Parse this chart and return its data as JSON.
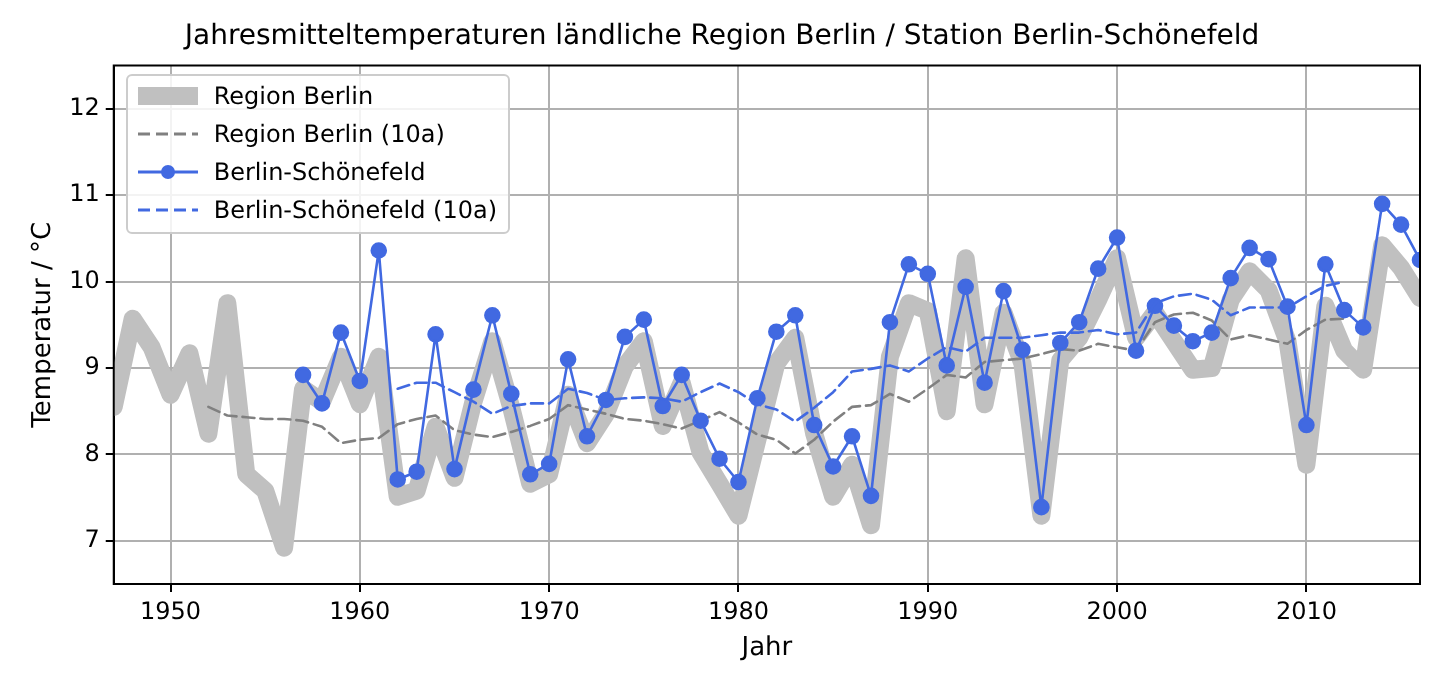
{
  "chart_data": {
    "type": "line",
    "title": "Jahresmitteltemperaturen ländliche Region Berlin / Station Berlin-Schönefeld",
    "xlabel": "Jahr",
    "ylabel": "Temperatur / °C",
    "xlim": [
      1947,
      2016
    ],
    "ylim": [
      6.5,
      12.5
    ],
    "xticks": [
      1950,
      1960,
      1970,
      1980,
      1990,
      2000,
      2010
    ],
    "yticks": [
      7,
      8,
      9,
      10,
      11,
      12
    ],
    "grid": true,
    "legend": "top left",
    "series": [
      {
        "name": "Region Berlin",
        "color": "#c0c0c0",
        "line_style": "solid",
        "marker": "none",
        "x": [
          1947,
          1948,
          1949,
          1950,
          1951,
          1952,
          1953,
          1954,
          1955,
          1956,
          1957,
          1958,
          1959,
          1960,
          1961,
          1962,
          1963,
          1964,
          1965,
          1966,
          1967,
          1968,
          1969,
          1970,
          1971,
          1972,
          1973,
          1974,
          1975,
          1976,
          1977,
          1978,
          1979,
          1980,
          1981,
          1982,
          1983,
          1984,
          1985,
          1986,
          1987,
          1988,
          1989,
          1990,
          1991,
          1992,
          1993,
          1994,
          1995,
          1996,
          1997,
          1998,
          1999,
          2000,
          2001,
          2002,
          2003,
          2004,
          2005,
          2006,
          2007,
          2008,
          2009,
          2010,
          2011,
          2012,
          2013,
          2014,
          2015,
          2016
        ],
        "values": [
          8.55,
          9.57,
          9.24,
          8.69,
          9.17,
          8.24,
          9.75,
          7.77,
          7.58,
          6.92,
          8.76,
          8.61,
          9.13,
          8.58,
          9.13,
          7.51,
          7.58,
          8.32,
          7.73,
          8.61,
          9.31,
          8.54,
          7.66,
          7.77,
          8.69,
          8.13,
          8.47,
          9.02,
          9.31,
          8.33,
          8.83,
          8.02,
          7.66,
          7.29,
          8.17,
          9.05,
          9.35,
          8.24,
          7.51,
          7.88,
          7.18,
          9.13,
          9.75,
          9.66,
          8.5,
          10.27,
          8.58,
          9.64,
          9.05,
          7.29,
          9.09,
          9.35,
          9.79,
          10.27,
          9.35,
          9.64,
          9.31,
          8.98,
          9.0,
          9.79,
          10.12,
          9.9,
          9.31,
          7.88,
          9.72,
          9.2,
          8.98,
          10.42,
          10.16,
          9.81
        ]
      },
      {
        "name": "Region Berlin (10a)",
        "color": "#808080",
        "line_style": "dashed",
        "marker": "none",
        "x": [
          1952,
          1953,
          1954,
          1955,
          1956,
          1957,
          1958,
          1959,
          1960,
          1961,
          1962,
          1963,
          1964,
          1965,
          1966,
          1967,
          1968,
          1969,
          1970,
          1971,
          1972,
          1973,
          1974,
          1975,
          1976,
          1977,
          1978,
          1979,
          1980,
          1981,
          1982,
          1983,
          1984,
          1985,
          1986,
          1987,
          1988,
          1989,
          1990,
          1991,
          1992,
          1993,
          1994,
          1995,
          1996,
          1997,
          1998,
          1999,
          2000,
          2001,
          2002,
          2003,
          2004,
          2005,
          2006,
          2007,
          2008,
          2009,
          2010,
          2011,
          2012
        ],
        "values": [
          8.55,
          8.45,
          8.43,
          8.41,
          8.41,
          8.39,
          8.32,
          8.13,
          8.17,
          8.19,
          8.35,
          8.41,
          8.45,
          8.28,
          8.23,
          8.2,
          8.26,
          8.33,
          8.41,
          8.57,
          8.52,
          8.47,
          8.41,
          8.39,
          8.35,
          8.3,
          8.39,
          8.49,
          8.37,
          8.23,
          8.17,
          8.01,
          8.17,
          8.38,
          8.55,
          8.57,
          8.7,
          8.61,
          8.76,
          8.92,
          8.89,
          9.07,
          9.09,
          9.11,
          9.16,
          9.22,
          9.2,
          9.28,
          9.24,
          9.2,
          9.53,
          9.62,
          9.64,
          9.55,
          9.33,
          9.38,
          9.33,
          9.28,
          9.44,
          9.56,
          9.57
        ]
      },
      {
        "name": "Berlin-Schönefeld",
        "color": "#4169e1",
        "line_style": "solid",
        "marker": "circle",
        "x": [
          1957,
          1958,
          1959,
          1960,
          1961,
          1962,
          1963,
          1964,
          1965,
          1966,
          1967,
          1968,
          1969,
          1970,
          1971,
          1972,
          1973,
          1974,
          1975,
          1976,
          1977,
          1978,
          1979,
          1980,
          1981,
          1982,
          1983,
          1984,
          1985,
          1986,
          1987,
          1988,
          1989,
          1990,
          1991,
          1992,
          1993,
          1994,
          1995,
          1996,
          1997,
          1998,
          1999,
          2000,
          2001,
          2002,
          2003,
          2004,
          2005,
          2006,
          2007,
          2008,
          2009,
          2010,
          2011,
          2012,
          2013,
          2014,
          2015,
          2016
        ],
        "values": [
          8.92,
          8.59,
          9.41,
          8.85,
          10.36,
          7.71,
          7.8,
          9.39,
          7.83,
          8.75,
          9.61,
          8.7,
          7.77,
          7.89,
          9.1,
          8.21,
          8.63,
          9.36,
          9.56,
          8.56,
          8.92,
          8.39,
          7.95,
          7.68,
          8.65,
          9.42,
          9.61,
          8.34,
          7.86,
          8.21,
          7.52,
          9.53,
          10.2,
          10.09,
          9.03,
          9.94,
          8.83,
          9.89,
          9.21,
          7.39,
          9.29,
          9.53,
          10.15,
          10.51,
          9.2,
          9.72,
          9.49,
          9.31,
          9.41,
          10.04,
          10.39,
          10.26,
          9.71,
          8.34,
          10.2,
          9.67,
          9.47,
          10.9,
          10.66,
          10.25
        ]
      },
      {
        "name": "Berlin-Schönefeld (10a)",
        "color": "#4169e1",
        "line_style": "dashed",
        "marker": "none",
        "x": [
          1962,
          1963,
          1964,
          1965,
          1966,
          1967,
          1968,
          1969,
          1970,
          1971,
          1972,
          1973,
          1974,
          1975,
          1976,
          1977,
          1978,
          1979,
          1980,
          1981,
          1982,
          1983,
          1984,
          1985,
          1986,
          1987,
          1988,
          1989,
          1990,
          1991,
          1992,
          1993,
          1994,
          1995,
          1996,
          1997,
          1998,
          1999,
          2000,
          2001,
          2002,
          2003,
          2004,
          2005,
          2006,
          2007,
          2008,
          2009,
          2010,
          2011,
          2012
        ],
        "values": [
          8.76,
          8.83,
          8.83,
          8.72,
          8.61,
          8.47,
          8.56,
          8.59,
          8.59,
          8.76,
          8.71,
          8.63,
          8.65,
          8.66,
          8.65,
          8.61,
          8.72,
          8.82,
          8.72,
          8.58,
          8.52,
          8.38,
          8.54,
          8.72,
          8.96,
          8.99,
          9.03,
          8.96,
          9.11,
          9.24,
          9.19,
          9.35,
          9.35,
          9.35,
          9.38,
          9.41,
          9.41,
          9.44,
          9.39,
          9.41,
          9.75,
          9.83,
          9.86,
          9.79,
          9.61,
          9.7,
          9.7,
          9.7,
          9.83,
          9.95,
          10.0
        ]
      }
    ]
  }
}
